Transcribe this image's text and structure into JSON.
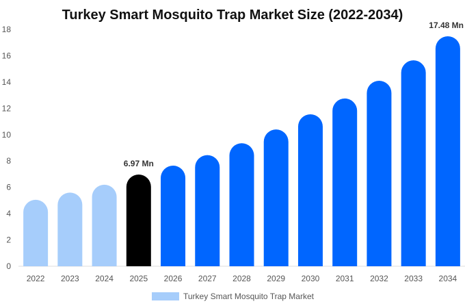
{
  "chart_data": {
    "type": "bar",
    "title": "Turkey Smart Mosquito Trap Market Size (2022-2034)",
    "xlabel": "",
    "ylabel": "",
    "categories": [
      "2022",
      "2023",
      "2024",
      "2025",
      "2026",
      "2027",
      "2028",
      "2029",
      "2030",
      "2031",
      "2032",
      "2033",
      "2034"
    ],
    "series": [
      {
        "name": "Turkey Smart Mosquito Trap Market",
        "values": [
          5.05,
          5.6,
          6.2,
          6.97,
          7.65,
          8.45,
          9.35,
          10.4,
          11.55,
          12.75,
          14.1,
          15.65,
          17.48
        ]
      }
    ],
    "data_labels": [
      {
        "category": "2025",
        "text": "6.97 Mn"
      },
      {
        "category": "2034",
        "text": "17.48 Mn"
      }
    ],
    "ylim": [
      0,
      18
    ],
    "yticks": [
      0,
      2,
      4,
      6,
      8,
      10,
      12,
      14,
      16,
      18
    ],
    "grid": false,
    "legend_position": "bottom",
    "colors": {
      "historical": "#a6cdfb",
      "current": "#000000",
      "forecast": "#0066ff",
      "legend_swatch": "#a6cdfb"
    },
    "bar_groups": {
      "historical": [
        "2022",
        "2023",
        "2024"
      ],
      "current": [
        "2025"
      ],
      "forecast": [
        "2026",
        "2027",
        "2028",
        "2029",
        "2030",
        "2031",
        "2032",
        "2033",
        "2034"
      ]
    }
  }
}
